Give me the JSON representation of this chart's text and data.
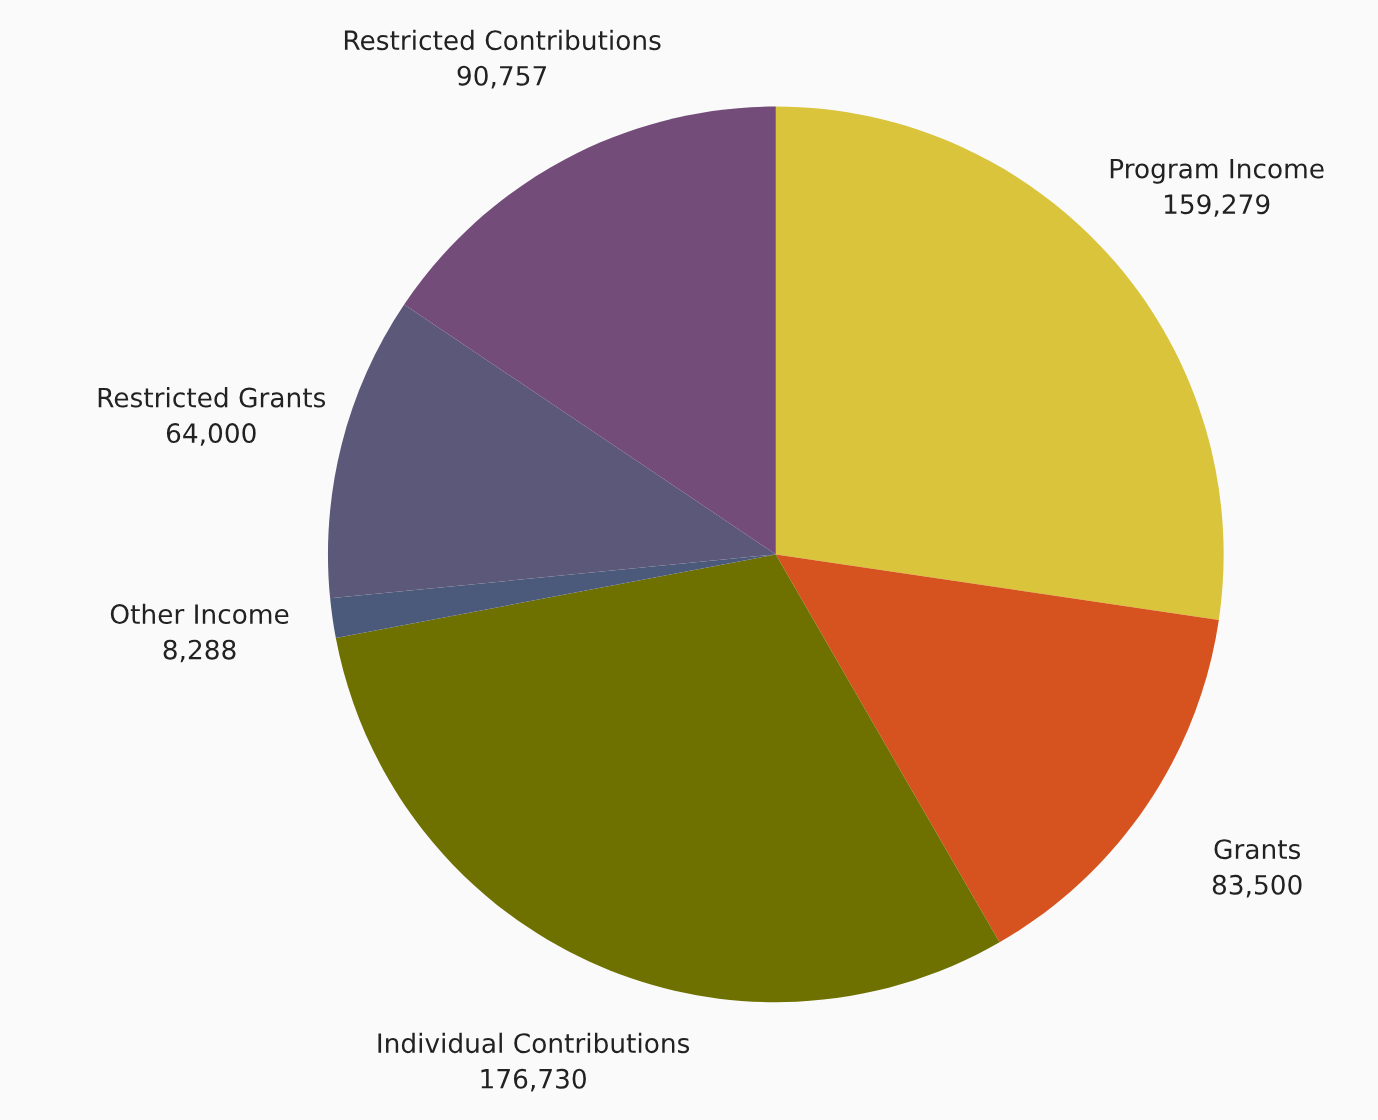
{
  "chart_data": {
    "type": "pie",
    "categories": [
      "Program Income",
      "Grants",
      "Individual Contributions",
      "Other Income",
      "Restricted Grants",
      "Restricted Contributions"
    ],
    "values": [
      159279,
      83500,
      176730,
      8288,
      64000,
      90757
    ],
    "value_labels": [
      "159,279",
      "83,500",
      "176,730",
      "8,288",
      "64,000",
      "90,757"
    ],
    "colors": [
      "#d9c43c",
      "#d6521f",
      "#6e7000",
      "#4b5a7a",
      "#5c587a",
      "#734c7a"
    ]
  }
}
